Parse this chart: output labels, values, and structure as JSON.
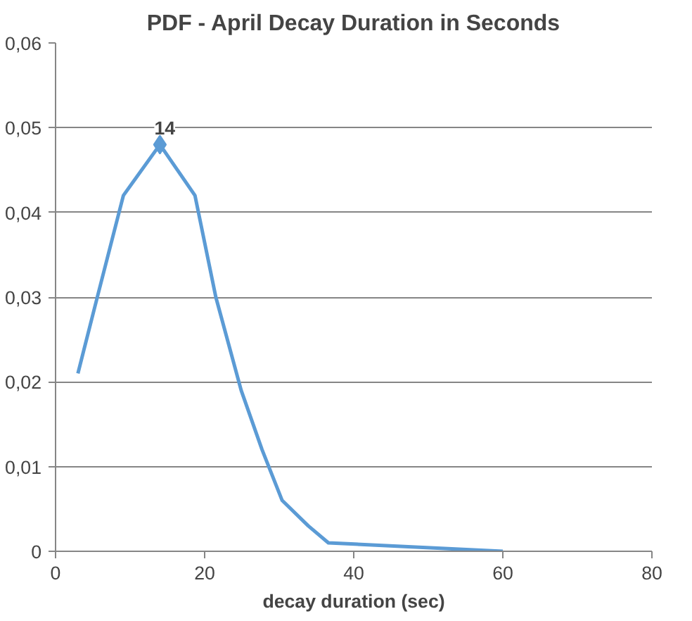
{
  "chart_data": {
    "type": "line",
    "title": "PDF - April Decay Duration in Seconds",
    "xlabel": "decay duration (sec)",
    "series": [
      {
        "color": "#5b9bd5",
        "x": [
          3,
          5.6,
          9.1,
          14,
          18.7,
          21.5,
          24.9,
          27.7,
          30.4,
          33.9,
          36.6,
          60
        ],
        "values": [
          0.021,
          0.03,
          0.042,
          0.048,
          0.042,
          0.03,
          0.019,
          0.012,
          0.006,
          0.003,
          0.001,
          0
        ]
      },
      {
        "type": "scatter",
        "marker": "diamond",
        "color": "#5b9bd5",
        "x": [
          14
        ],
        "values": [
          0.048
        ]
      }
    ],
    "annotations": [
      {
        "text": "14",
        "x": 14,
        "y": 0.048
      }
    ],
    "xlim": [
      0,
      80
    ],
    "xticks": [
      0,
      20,
      40,
      60,
      80
    ],
    "ylim": [
      0,
      0.06
    ],
    "yticks": [
      0,
      {
        "value": 0.01,
        "label": "0,01"
      },
      {
        "value": 0.02,
        "label": "0,02"
      },
      {
        "value": 0.03,
        "label": "0,03"
      },
      {
        "value": 0.04,
        "label": "0,04"
      },
      {
        "value": 0.05,
        "label": "0,05"
      },
      {
        "value": 0.06,
        "label": "0,06"
      }
    ],
    "grid": "y",
    "line_style": "solid",
    "marker": "none"
  }
}
